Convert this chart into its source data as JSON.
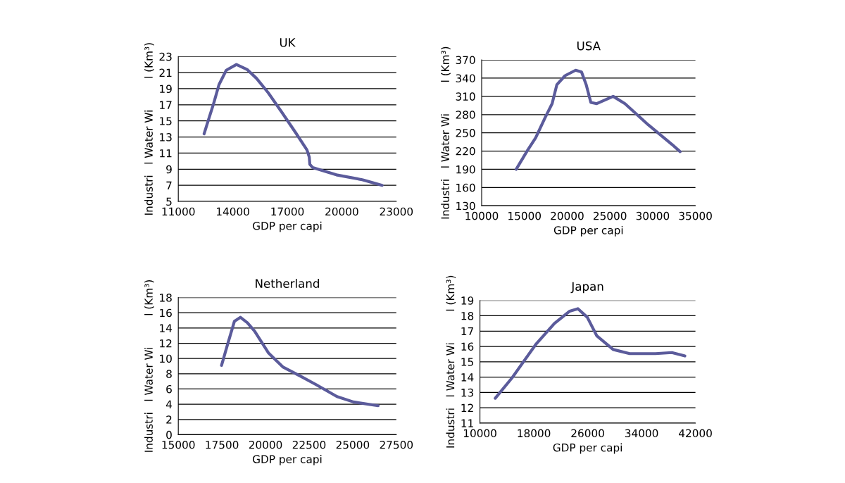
{
  "chart_data": [
    {
      "type": "line",
      "title": "UK",
      "xlabel": "GDP per capi",
      "ylabel": "Industri   l Water Wi         l (Km³)",
      "grid": "y",
      "legend": false,
      "marker": "none",
      "line_style": "solid",
      "xlim": [
        11000,
        23000
      ],
      "xticks": [
        11000,
        14000,
        17000,
        20000,
        23000
      ],
      "ylim": [
        5,
        23
      ],
      "yticks": [
        5,
        7,
        9,
        11,
        13,
        15,
        17,
        19,
        21,
        23
      ],
      "series": [
        {
          "color": "#5b5b9b",
          "x": [
            12420,
            12600,
            12950,
            13240,
            13640,
            14200,
            14780,
            15300,
            15950,
            16720,
            17500,
            18080,
            18210,
            18240,
            18400,
            19700,
            21120,
            22220
          ],
          "values": [
            13.4,
            14.7,
            17.2,
            19.5,
            21.3,
            22.0,
            21.4,
            20.3,
            18.5,
            16.0,
            13.4,
            11.4,
            10.5,
            9.6,
            9.2,
            8.3,
            7.7,
            7.0
          ]
        }
      ]
    },
    {
      "type": "line",
      "title": "USA",
      "xlabel": "GDP per capi",
      "ylabel": "Industri   l Water Wi         l (Km³)",
      "grid": "y",
      "legend": false,
      "marker": "none",
      "line_style": "solid",
      "xlim": [
        10000,
        35000
      ],
      "xticks": [
        10000,
        15000,
        20000,
        25000,
        30000,
        35000
      ],
      "ylim": [
        130,
        370
      ],
      "yticks": [
        130,
        160,
        190,
        220,
        250,
        280,
        310,
        340,
        370
      ],
      "series": [
        {
          "color": "#5b5b9b",
          "x": [
            14040,
            15360,
            16320,
            17420,
            18240,
            18790,
            19750,
            20990,
            21680,
            22230,
            22770,
            23460,
            25380,
            26760,
            29500,
            32250,
            33210
          ],
          "values": [
            190,
            221,
            242,
            275,
            298,
            329,
            344,
            353,
            350,
            329,
            300,
            298,
            310,
            298,
            263,
            231,
            219
          ]
        }
      ]
    },
    {
      "type": "line",
      "title": "Netherland",
      "xlabel": "GDP per capi",
      "ylabel": "Industri   l Water Wi         l (Km³)",
      "grid": "y",
      "legend": false,
      "marker": "none",
      "line_style": "solid",
      "xlim": [
        15000,
        27500
      ],
      "xticks": [
        15000,
        17500,
        20000,
        22500,
        25000,
        27500
      ],
      "ylim": [
        0,
        18
      ],
      "yticks": [
        0,
        2,
        4,
        6,
        8,
        10,
        12,
        14,
        16,
        18
      ],
      "series": [
        {
          "color": "#5b5b9b",
          "x": [
            17480,
            17820,
            18220,
            18560,
            18960,
            19370,
            20180,
            20990,
            22070,
            22880,
            24100,
            25040,
            26460
          ],
          "values": [
            9.1,
            11.8,
            14.9,
            15.4,
            14.7,
            13.6,
            10.7,
            8.9,
            7.6,
            6.6,
            5.0,
            4.3,
            3.8
          ]
        }
      ]
    },
    {
      "type": "line",
      "title": "Japan",
      "xlabel": "GDP per capi",
      "ylabel": "Industri   l Water Wi         l (Km³)",
      "grid": "y",
      "legend": false,
      "marker": "none",
      "line_style": "solid",
      "xlim": [
        10000,
        42000
      ],
      "xticks": [
        10000,
        18000,
        26000,
        34000,
        42000
      ],
      "ylim": [
        11,
        19
      ],
      "yticks": [
        11,
        12,
        13,
        14,
        15,
        16,
        17,
        18,
        19
      ],
      "series": [
        {
          "color": "#5b5b9b",
          "x": [
            12270,
            14780,
            18270,
            21060,
            23330,
            24550,
            25940,
            27340,
            29780,
            32230,
            36060,
            38500,
            40430
          ],
          "values": [
            12.62,
            13.96,
            16.12,
            17.5,
            18.3,
            18.46,
            17.9,
            16.7,
            15.8,
            15.53,
            15.53,
            15.6,
            15.38
          ]
        }
      ]
    }
  ]
}
